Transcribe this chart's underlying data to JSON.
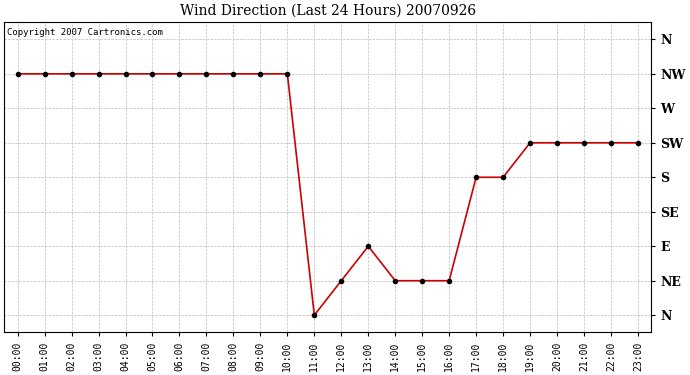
{
  "title": "Wind Direction (Last 24 Hours) 20070926",
  "copyright_text": "Copyright 2007 Cartronics.com",
  "line_color": "#cc0000",
  "marker_color": "#cc0000",
  "bg_color": "#ffffff",
  "grid_color": "#bbbbbb",
  "x_hours": [
    0,
    1,
    2,
    3,
    4,
    5,
    6,
    7,
    8,
    9,
    10,
    11,
    12,
    13,
    14,
    15,
    16,
    17,
    18,
    19,
    20,
    21,
    22,
    23
  ],
  "y_values": [
    7,
    7,
    7,
    7,
    7,
    7,
    7,
    7,
    7,
    7,
    7,
    0,
    1,
    2,
    1,
    1,
    1,
    4,
    4,
    5,
    5,
    5,
    5,
    5
  ],
  "direction_labels": [
    "N",
    "NE",
    "E",
    "SE",
    "S",
    "SW",
    "W",
    "NW",
    "N"
  ],
  "direction_values": [
    0,
    1,
    2,
    3,
    4,
    5,
    6,
    7,
    8
  ],
  "ylim": [
    -0.5,
    8.5
  ],
  "xlim": [
    -0.5,
    23.5
  ],
  "figwidth": 6.9,
  "figheight": 3.75,
  "dpi": 100
}
